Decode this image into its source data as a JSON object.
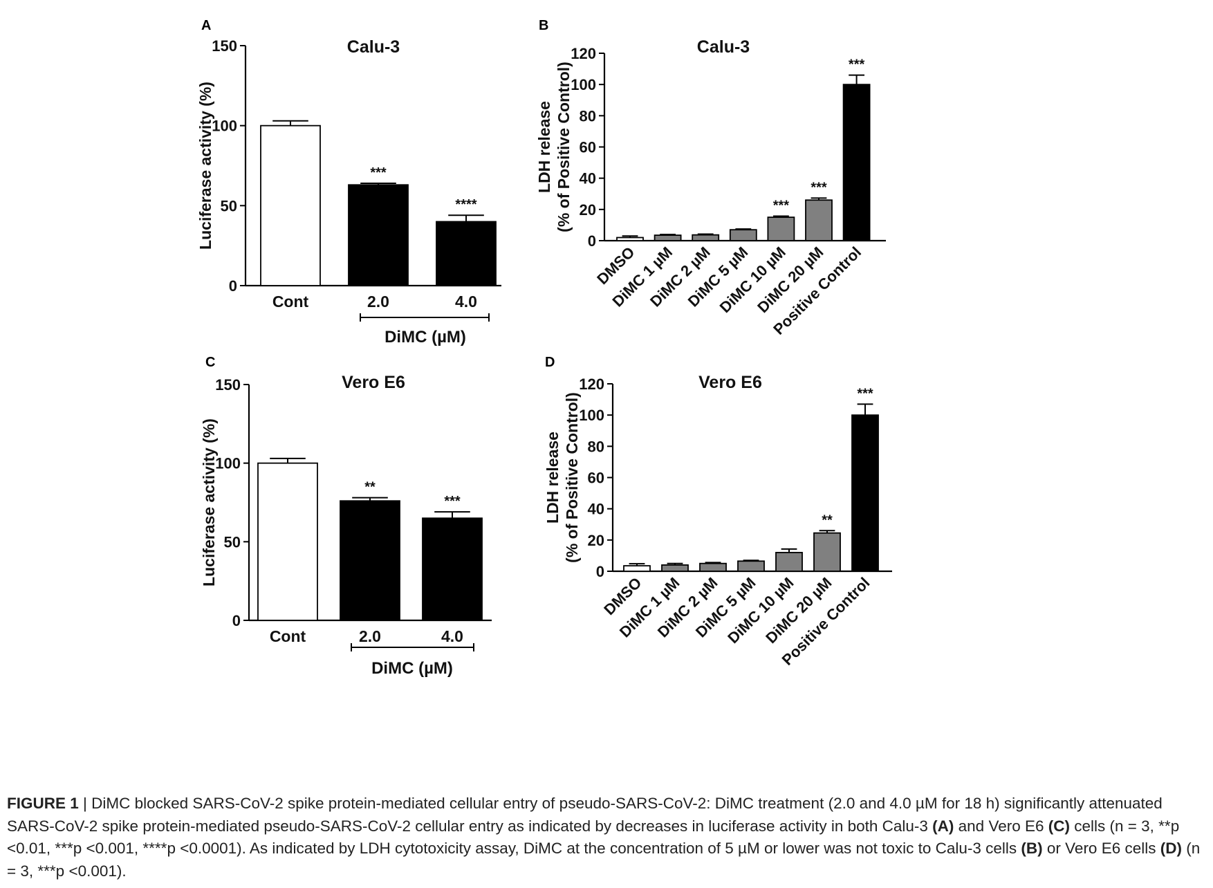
{
  "figure": {
    "caption": {
      "label": "FIGURE 1",
      "separator": " | ",
      "segments": [
        {
          "text": "DiMC blocked SARS-CoV-2 spike protein-mediated cellular entry of pseudo-SARS-CoV-2: DiMC treatment (2.0 and 4.0 µM for 18 h) significantly attenuated SARS-CoV-2 spike protein-mediated pseudo-SARS-CoV-2 cellular entry as indicated by decreases in luciferase activity in both Calu-3 ",
          "bold": false
        },
        {
          "text": "(A)",
          "bold": true
        },
        {
          "text": " and Vero E6 ",
          "bold": false
        },
        {
          "text": "(C)",
          "bold": true
        },
        {
          "text": " cells (n = 3, **p <0.01, ***p <0.001, ****p <0.0001). As indicated by LDH cytotoxicity assay, DiMC at the concentration of 5 µM or lower was not toxic to Calu-3 cells ",
          "bold": false
        },
        {
          "text": "(B)",
          "bold": true
        },
        {
          "text": " or Vero E6 cells ",
          "bold": false
        },
        {
          "text": "(D)",
          "bold": true
        },
        {
          "text": " (n = 3, ***p <0.001).",
          "bold": false
        }
      ]
    }
  },
  "chart_data": [
    {
      "panel": "A",
      "type": "bar",
      "title": "Calu-3",
      "ylabel": "Luciferase activity (%)",
      "xlabel": "",
      "group_label": "DiMC (µM)",
      "grouped_categories": [
        "2.0",
        "4.0"
      ],
      "categories": [
        "Cont",
        "2.0",
        "4.0"
      ],
      "values": [
        100,
        63,
        40
      ],
      "errors": [
        3,
        1,
        4
      ],
      "significance": [
        "",
        "***",
        "****"
      ],
      "bar_colors": [
        "#ffffff",
        "#000000",
        "#000000"
      ],
      "ylim": [
        0,
        150
      ],
      "yticks": [
        0,
        50,
        100,
        150
      ],
      "grid": false
    },
    {
      "panel": "B",
      "type": "bar",
      "title": "Calu-3",
      "ylabel": "LDH release\n(% of Positive Control)",
      "xlabel": "",
      "categories": [
        "DMSO",
        "DiMC 1 µM",
        "DiMC 2 µM",
        "DiMC 5 µM",
        "DiMC 10 µM",
        "DiMC 20 µM",
        "Positive Control"
      ],
      "values": [
        2,
        3.5,
        3.7,
        7,
        15,
        26,
        100
      ],
      "errors": [
        1,
        0.5,
        0.5,
        0.5,
        0.7,
        1.3,
        6
      ],
      "significance": [
        "",
        "",
        "",
        "",
        "***",
        "***",
        "***"
      ],
      "bar_colors": [
        "#ffffff",
        "#808080",
        "#808080",
        "#808080",
        "#808080",
        "#808080",
        "#000000"
      ],
      "ylim": [
        0,
        120
      ],
      "yticks": [
        0,
        20,
        40,
        60,
        80,
        100,
        120
      ],
      "grid": false
    },
    {
      "panel": "C",
      "type": "bar",
      "title": "Vero E6",
      "ylabel": "Luciferase activity (%)",
      "xlabel": "",
      "group_label": "DiMC (µM)",
      "grouped_categories": [
        "2.0",
        "4.0"
      ],
      "categories": [
        "Cont",
        "2.0",
        "4.0"
      ],
      "values": [
        100,
        76,
        65
      ],
      "errors": [
        3,
        2,
        4
      ],
      "significance": [
        "",
        "**",
        "***"
      ],
      "bar_colors": [
        "#ffffff",
        "#000000",
        "#000000"
      ],
      "ylim": [
        0,
        150
      ],
      "yticks": [
        0,
        50,
        100,
        150
      ],
      "grid": false
    },
    {
      "panel": "D",
      "type": "bar",
      "title": "Vero E6",
      "ylabel": "LDH release\n(% of Positive Control)",
      "xlabel": "",
      "categories": [
        "DMSO",
        "DiMC 1 µM",
        "DiMC 2 µM",
        "DiMC 5 µM",
        "DiMC 10 µM",
        "DiMC 20 µM",
        "Positive Control"
      ],
      "values": [
        3.5,
        4,
        5,
        6.5,
        12,
        24.5,
        100
      ],
      "errors": [
        1.3,
        1,
        0.6,
        0.5,
        2.2,
        1.5,
        7
      ],
      "significance": [
        "",
        "",
        "",
        "",
        "",
        "**",
        "***"
      ],
      "bar_colors": [
        "#ffffff",
        "#808080",
        "#808080",
        "#808080",
        "#808080",
        "#808080",
        "#000000"
      ],
      "ylim": [
        0,
        120
      ],
      "yticks": [
        0,
        20,
        40,
        60,
        80,
        100,
        120
      ],
      "grid": false
    }
  ]
}
